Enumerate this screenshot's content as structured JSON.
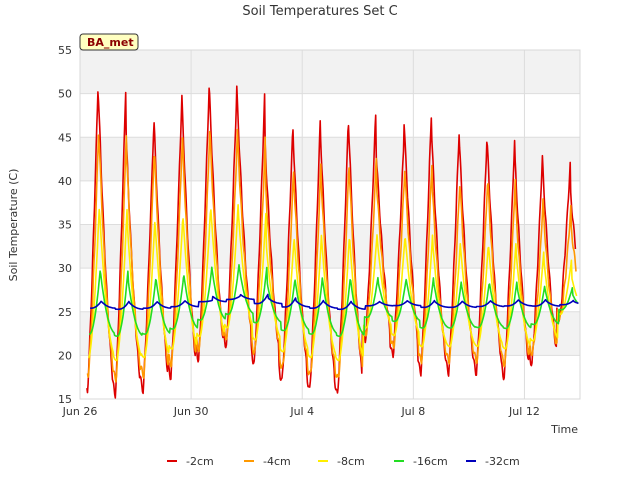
{
  "chart_data": {
    "type": "line",
    "title": "Soil Temperatures Set C",
    "xlabel": "Time",
    "ylabel": "Soil Temperature (C)",
    "badge": "BA_met",
    "ylim": [
      15,
      55
    ],
    "yticks": [
      15,
      20,
      25,
      30,
      35,
      40,
      45,
      50,
      55
    ],
    "xlim": [
      "2024-06-26",
      "2024-07-14"
    ],
    "xticks": [
      {
        "date": "2024-06-26",
        "label": "Jun 26"
      },
      {
        "date": "2024-06-30",
        "label": "Jun 30"
      },
      {
        "date": "2024-07-04",
        "label": "Jul 4"
      },
      {
        "date": "2024-07-08",
        "label": "Jul 8"
      },
      {
        "date": "2024-07-12",
        "label": "Jul 12"
      }
    ],
    "legend_position": "bottom",
    "grid": true,
    "daily_peaks": [
      "2024-06-26",
      "2024-06-27",
      "2024-06-28",
      "2024-06-29",
      "2024-06-30",
      "2024-07-01",
      "2024-07-02",
      "2024-07-03",
      "2024-07-04",
      "2024-07-05",
      "2024-07-06",
      "2024-07-07",
      "2024-07-08",
      "2024-07-09",
      "2024-07-10",
      "2024-07-11",
      "2024-07-12",
      "2024-07-13"
    ],
    "series": [
      {
        "name": "-2cm",
        "color": "#dd0000",
        "max": [
          51,
          46,
          48,
          51,
          51,
          50,
          45,
          47,
          46,
          48,
          44,
          48,
          46,
          45,
          45,
          43,
          42,
          39
        ],
        "min": [
          16,
          15.5,
          16,
          17.5,
          19.5,
          21,
          19,
          17,
          16,
          15.5,
          21.5,
          20,
          18,
          18,
          18,
          17.5,
          19,
          24
        ]
      },
      {
        "name": "-4cm",
        "color": "#ff9900",
        "max": [
          46,
          43.5,
          44,
          46,
          46,
          45,
          40,
          42,
          41,
          43,
          40,
          42.5,
          40,
          40,
          40.5,
          38,
          37,
          35
        ]
      },
      {
        "name": "-8cm",
        "color": "#ffee00",
        "max": [
          37,
          35.5,
          35.5,
          36.5,
          37.5,
          36.5,
          33,
          34,
          33.5,
          34,
          33.5,
          34,
          33,
          32.5,
          33,
          32,
          31,
          29
        ]
      },
      {
        "name": "-16cm",
        "color": "#22dd22",
        "max": [
          29.8,
          28.8,
          29,
          29.5,
          30.5,
          30.2,
          28.5,
          29,
          28.8,
          29,
          28.5,
          29,
          28.5,
          28.2,
          28.5,
          28,
          27.8,
          27
        ]
      },
      {
        "name": "-32cm",
        "color": "#0000bb",
        "max": [
          26.2,
          26.1,
          26.2,
          26.3,
          26.8,
          27,
          26.6,
          26.3,
          26.2,
          26.1,
          26.2,
          26.3,
          26.2,
          26.2,
          26.3,
          26.4,
          26.3,
          26.2
        ]
      }
    ]
  }
}
